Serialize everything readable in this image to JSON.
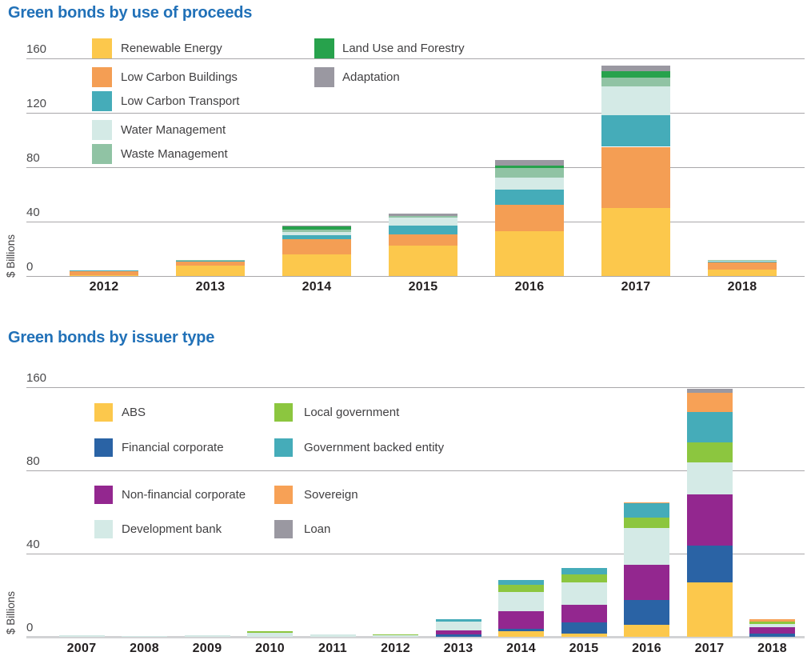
{
  "colors": {
    "title": "#2171b8",
    "axis_text": "#4a4a4c",
    "year_text": "#231f20",
    "gridline": "#a9a7aa",
    "baseline_light": "#d2d3d5",
    "background": "#ffffff"
  },
  "chart_data": [
    {
      "type": "bar",
      "stacked": true,
      "title": "Green bonds by use of proceeds",
      "ylabel": "$ Billions",
      "yticks": [
        0,
        40,
        80,
        120,
        160
      ],
      "ylim": [
        0,
        160
      ],
      "axis": "linear",
      "grid": "horizontal",
      "legend_position": "top-inside",
      "categories": [
        "2012",
        "2013",
        "2014",
        "2015",
        "2016",
        "2017",
        "2018"
      ],
      "series": [
        {
          "name": "Renewable Energy",
          "color": "#fcc84c",
          "values": [
            0.6,
            7.6,
            15.7,
            22.5,
            32.8,
            50.0,
            4.6
          ]
        },
        {
          "name": "Low Carbon Buildings",
          "color": "#f49e54",
          "values": [
            3.5,
            2.8,
            11.5,
            7.8,
            19.6,
            45.0,
            5.6
          ]
        },
        {
          "name": "Low Carbon Transport",
          "color": "#45acb9",
          "values": [
            0.2,
            0.8,
            3.0,
            6.9,
            11.0,
            23.5,
            0.7
          ]
        },
        {
          "name": "Water Management",
          "color": "#d4eae6",
          "values": [
            0.0,
            0.3,
            2.2,
            5.5,
            8.8,
            21.0,
            0.4
          ]
        },
        {
          "name": "Waste Management",
          "color": "#90c3a4",
          "values": [
            0.0,
            0.3,
            1.5,
            1.2,
            7.0,
            6.5,
            0.7
          ]
        },
        {
          "name": "Land Use and Forestry",
          "color": "#27a24c",
          "values": [
            0.0,
            0.0,
            2.5,
            0.0,
            1.8,
            4.5,
            0.0
          ]
        },
        {
          "name": "Adaptation",
          "color": "#9a98a1",
          "values": [
            0.0,
            0.0,
            0.5,
            1.8,
            4.5,
            4.0,
            0.0
          ]
        }
      ],
      "legend_columns": [
        [
          "Renewable Energy",
          "Low Carbon Buildings",
          "Low Carbon Transport",
          "Water Management",
          "Waste Management"
        ],
        [
          "Land Use and Forestry",
          "Adaptation"
        ]
      ]
    },
    {
      "type": "bar",
      "stacked": true,
      "title": "Green bonds by issuer type",
      "ylabel": "$ Billions",
      "yticks": [
        0,
        40,
        80,
        160
      ],
      "ylim": [
        0,
        160
      ],
      "axis": "linear-with-unevenly-labeled-gridlines",
      "grid": "horizontal",
      "legend_position": "top-inside",
      "categories": [
        "2007",
        "2008",
        "2009",
        "2010",
        "2011",
        "2012",
        "2013",
        "2014",
        "2015",
        "2016",
        "2017",
        "2018"
      ],
      "series": [
        {
          "name": "ABS",
          "color": "#fcc84c",
          "values": [
            0,
            0,
            0,
            0,
            0,
            0,
            0,
            3.5,
            1.9,
            7.8,
            34.7,
            0
          ]
        },
        {
          "name": "Financial corporate",
          "color": "#2a63a5",
          "values": [
            0,
            0,
            0,
            0,
            0,
            0,
            1.5,
            1.4,
            7.3,
            15.7,
            23.9,
            2.1
          ]
        },
        {
          "name": "Non-financial corporate",
          "color": "#93278f",
          "values": [
            0,
            0,
            0,
            0,
            0,
            0,
            2.6,
            11.4,
            11.1,
            22.6,
            32.5,
            4.1
          ]
        },
        {
          "name": "Development bank",
          "color": "#d4eae6",
          "values": [
            0.8,
            0.5,
            1.0,
            2.4,
            1.3,
            1.0,
            5.6,
            12.5,
            14.5,
            23.6,
            20.5,
            2.1
          ]
        },
        {
          "name": "Local government",
          "color": "#8cc63f",
          "values": [
            0,
            0,
            0,
            1.2,
            0,
            0.7,
            0,
            4.3,
            5.1,
            6.8,
            12.8,
            1.5
          ]
        },
        {
          "name": "Government backed entity",
          "color": "#45acb9",
          "values": [
            0,
            0,
            0,
            0,
            0,
            0,
            1.7,
            3.4,
            4.3,
            9.1,
            19.6,
            0
          ]
        },
        {
          "name": "Sovereign",
          "color": "#f7a156",
          "values": [
            0,
            0,
            0,
            0,
            0,
            0,
            0,
            0,
            0,
            0.7,
            12.6,
            1.5
          ]
        },
        {
          "name": "Loan",
          "color": "#9a98a1",
          "values": [
            0,
            0,
            0,
            0,
            0,
            0,
            0,
            0,
            0,
            0,
            2.3,
            0
          ]
        }
      ],
      "legend_columns": [
        [
          "ABS",
          "Financial corporate",
          "Non-financial corporate",
          "Development bank"
        ],
        [
          "Local government",
          "Government backed entity",
          "Sovereign",
          "Loan"
        ]
      ]
    }
  ]
}
